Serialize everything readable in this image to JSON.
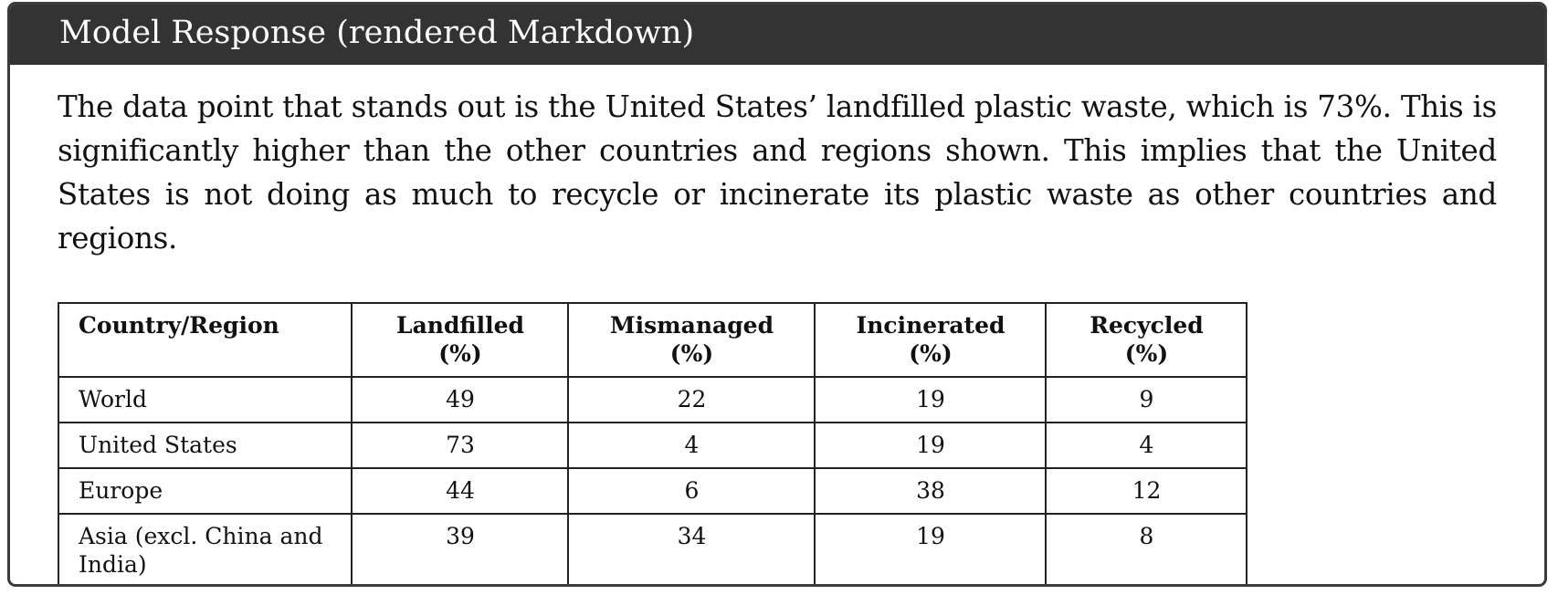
{
  "header": {
    "title": "Model Response (rendered Markdown)"
  },
  "body": {
    "paragraph": "The data point that stands out is the United States’ landfilled plastic waste, which is 73%. This is significantly higher than the other countries and regions shown. This implies that the United States is not doing as much to recycle or incinerate its plastic waste as other countries and regions."
  },
  "table": {
    "headers": [
      "Country/Region",
      "Landfilled (%)",
      "Mismanaged (%)",
      "Incinerated (%)",
      "Recycled (%)"
    ],
    "rows": [
      [
        "World",
        "49",
        "22",
        "19",
        "9"
      ],
      [
        "United States",
        "73",
        "4",
        "19",
        "4"
      ],
      [
        "Europe",
        "44",
        "6",
        "38",
        "12"
      ],
      [
        "Asia (excl. China and India)",
        "39",
        "34",
        "19",
        "8"
      ]
    ]
  }
}
